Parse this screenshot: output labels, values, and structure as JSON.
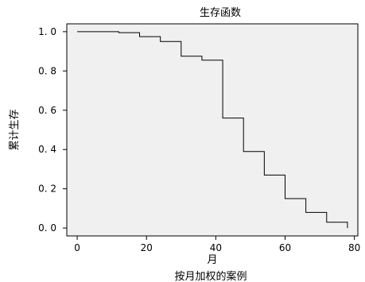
{
  "chart_data": {
    "type": "line",
    "subtype": "step",
    "title": "生存函数",
    "xlabel": "月",
    "xlabel_secondary": "按月加权的案例",
    "ylabel": "累计生存",
    "xlim": [
      -3,
      81
    ],
    "ylim": [
      -0.04,
      1.04
    ],
    "x_ticks": [
      0,
      20,
      40,
      60,
      80
    ],
    "y_ticks": [
      0.0,
      0.2,
      0.4,
      0.6,
      0.8,
      1.0
    ],
    "y_tick_labels": [
      "0. 0",
      "0. 2",
      "0. 4",
      "0. 6",
      "0. 8",
      "1. 0"
    ],
    "grid": false,
    "plot_background": "#f0f0f0",
    "line_color": "#000000",
    "series": [
      {
        "x": [
          0,
          12,
          18,
          24,
          30,
          36,
          42,
          48,
          54,
          60,
          66,
          72,
          78
        ],
        "y": [
          1.0,
          0.995,
          0.975,
          0.95,
          0.875,
          0.855,
          0.56,
          0.39,
          0.27,
          0.15,
          0.08,
          0.03,
          0.0
        ]
      }
    ]
  }
}
